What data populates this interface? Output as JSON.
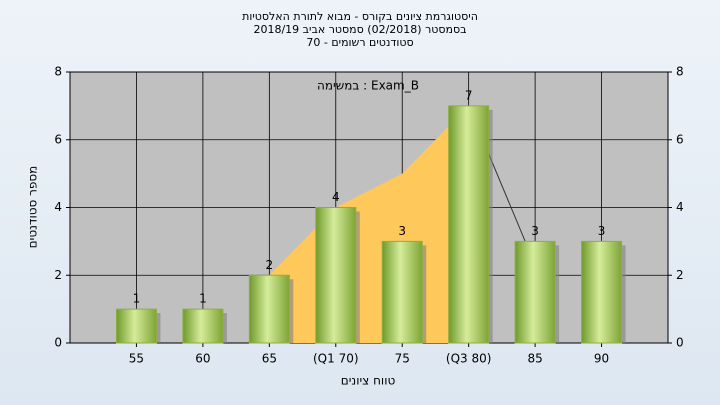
{
  "chart_data": {
    "type": "bar",
    "title": [
      "היסטוגרמת ציונים בקורס - מבוא לתורת האלסטיות",
      "בסמסטר (02/2018)  סמסטר אביב 2018/19",
      "סטודנטים רשומים - 70"
    ],
    "annotation": "במשימה : Exam_B",
    "y_label": "מספר סטודנטים",
    "x_label": "טווח ציונים",
    "categories": [
      "55",
      "60",
      "65",
      "(Q1 70)",
      "75",
      "(Q3 80)",
      "85",
      "90"
    ],
    "values": [
      1,
      1,
      2,
      4,
      3,
      7,
      3,
      3
    ],
    "color": "#8cb040",
    "area": {
      "color": "#ffc85a",
      "values": [
        null,
        null,
        2,
        4,
        5,
        7,
        null,
        null
      ]
    },
    "line": {
      "color": "#333333",
      "values": [
        null,
        null,
        null,
        null,
        null,
        7,
        2.3,
        null
      ]
    },
    "ylim": [
      0,
      8
    ],
    "yticks": [
      0,
      2,
      4,
      6,
      8
    ],
    "y2lim": [
      0,
      8
    ],
    "y2ticks": [
      0,
      2,
      4,
      6,
      8
    ],
    "grid": true
  }
}
